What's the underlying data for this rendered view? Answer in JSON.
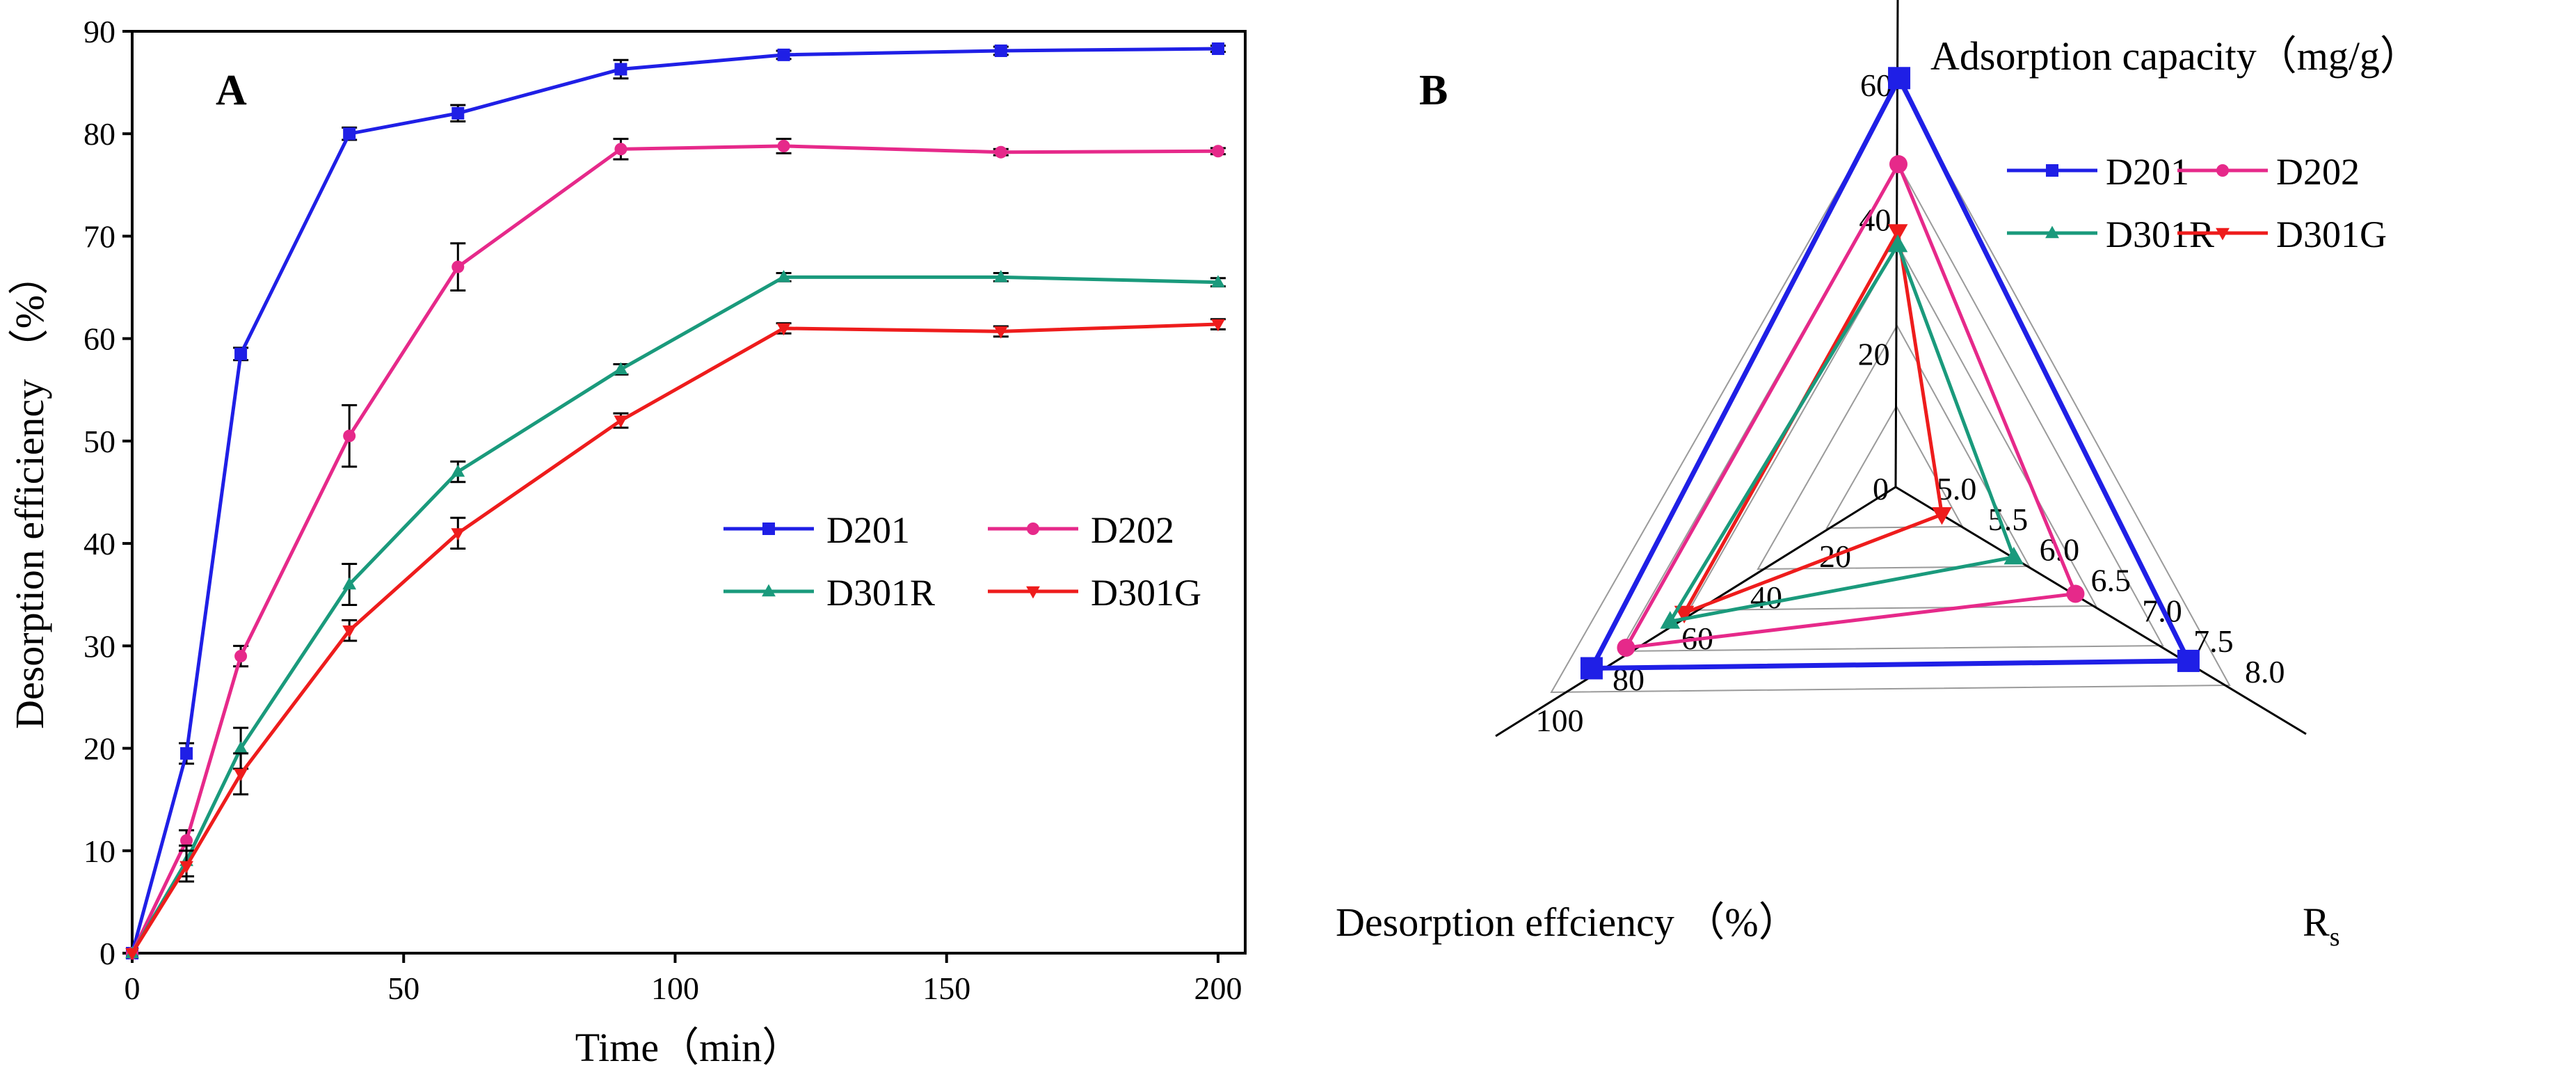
{
  "colors": {
    "D201": "#1f1fe6",
    "D202": "#e6298a",
    "D301R": "#1a9a7c",
    "D301G": "#ee1c1c"
  },
  "chart_data": [
    {
      "panel_label": "A",
      "type": "line",
      "xlabel": "Time（min）",
      "ylabel": "Desorption efficiency （%）",
      "xlim": [
        0,
        205
      ],
      "ylim": [
        0,
        90
      ],
      "xticks": [
        "0",
        "50",
        "100",
        "150",
        "200"
      ],
      "yticks": [
        "0",
        "10",
        "20",
        "30",
        "40",
        "50",
        "60",
        "70",
        "80",
        "90"
      ],
      "x": [
        0,
        10,
        20,
        40,
        60,
        90,
        120,
        160,
        200
      ],
      "legend_position": "center-right",
      "series": [
        {
          "name": "D201",
          "marker": "square",
          "values": [
            0,
            19.5,
            58.5,
            80,
            82,
            86.3,
            87.7,
            88.1,
            88.3
          ],
          "errors": [
            0,
            1,
            0.6,
            0.6,
            0.8,
            0.9,
            0.4,
            0.4,
            0.3
          ]
        },
        {
          "name": "D202",
          "marker": "circle",
          "values": [
            0,
            11,
            29,
            50.5,
            67,
            78.5,
            78.8,
            78.2,
            78.3
          ],
          "errors": [
            0,
            1,
            1,
            3,
            2.3,
            1,
            0.7,
            0.3,
            0.3
          ]
        },
        {
          "name": "D301R",
          "marker": "triangle-up",
          "values": [
            0,
            9,
            20,
            36,
            47,
            57,
            66,
            66,
            65.5
          ],
          "errors": [
            0,
            1.5,
            2,
            2,
            1,
            0.5,
            0.4,
            0.4,
            0.4
          ]
        },
        {
          "name": "D301G",
          "marker": "triangle-down",
          "values": [
            0,
            8.5,
            17.5,
            31.5,
            41,
            52,
            61,
            60.7,
            61.4
          ],
          "errors": [
            0,
            1.5,
            2,
            1,
            1.5,
            0.7,
            0.5,
            0.5,
            0.5
          ]
        }
      ]
    },
    {
      "panel_label": "B",
      "type": "radar",
      "legend_position": "top-right",
      "axes": [
        {
          "label": "Adsorption capacity（mg/g）",
          "min": 0,
          "max": 60,
          "ticks": [
            "0",
            "20",
            "40",
            "60"
          ]
        },
        {
          "label": "R",
          "label_sub": "s",
          "min": 4.75,
          "max": 8.0,
          "ticks": [
            "5.0",
            "5.5",
            "6.0",
            "6.5",
            "7.0",
            "7.5",
            "8.0"
          ]
        },
        {
          "label": "Desorption effciency （%）",
          "min": 0,
          "max": 100,
          "ticks": [
            "20",
            "40",
            "60",
            "80",
            "100"
          ]
        }
      ],
      "series": [
        {
          "name": "D201",
          "marker": "square",
          "values": [
            60.8,
            7.6,
            88.3
          ]
        },
        {
          "name": "D202",
          "marker": "circle",
          "values": [
            48,
            6.5,
            78.3
          ]
        },
        {
          "name": "D301R",
          "marker": "triangle-up",
          "values": [
            36,
            5.9,
            65.5
          ]
        },
        {
          "name": "D301G",
          "marker": "triangle-down",
          "values": [
            38,
            5.2,
            61.4
          ]
        }
      ]
    }
  ]
}
